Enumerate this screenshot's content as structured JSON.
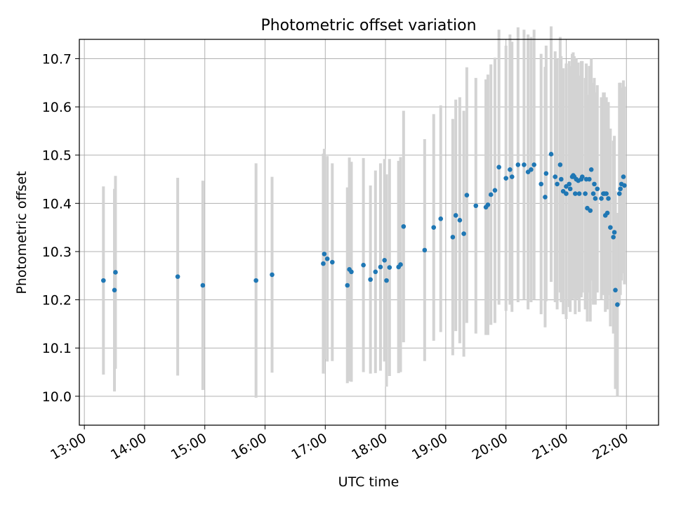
{
  "chart_data": {
    "type": "scatter",
    "title": "Photometric offset variation",
    "xlabel": "UTC time",
    "ylabel": "Photometric offset",
    "x_ticks": [
      "13:00",
      "14:00",
      "15:00",
      "16:00",
      "17:00",
      "18:00",
      "19:00",
      "20:00",
      "21:00",
      "22:00"
    ],
    "y_ticks": [
      "10.0",
      "10.1",
      "10.2",
      "10.3",
      "10.4",
      "10.5",
      "10.6",
      "10.7"
    ],
    "xlim": [
      "12:55",
      "22:32"
    ],
    "ylim": [
      9.94,
      10.74
    ],
    "grid": true,
    "colors": {
      "marker": "#1f77b4",
      "errorbar": "#d3d3d3",
      "grid": "#b0b0b0"
    },
    "series": [
      {
        "x": [
          "13:19",
          "13:30",
          "13:31",
          "14:33",
          "14:58",
          "15:51",
          "16:07",
          "16:58",
          "16:59",
          "17:02",
          "17:07",
          "17:22",
          "17:24",
          "17:26",
          "17:38",
          "17:45",
          "17:50",
          "17:55",
          "17:59",
          "18:01",
          "18:04",
          "18:13",
          "18:15",
          "18:18",
          "18:39",
          "18:48",
          "18:55",
          "19:07",
          "19:10",
          "19:14",
          "19:18",
          "19:21",
          "19:30",
          "19:40",
          "19:42",
          "19:45",
          "19:49",
          "19:53",
          "20:00",
          "20:04",
          "20:06",
          "20:12",
          "20:18",
          "20:22",
          "20:25",
          "20:28",
          "20:35",
          "20:39",
          "20:40",
          "20:45",
          "20:49",
          "20:51",
          "20:54",
          "20:55",
          "20:57",
          "21:00",
          "21:00",
          "21:03",
          "21:04",
          "21:06",
          "21:07",
          "21:08",
          "21:09",
          "21:10",
          "21:12",
          "21:13",
          "21:15",
          "21:16",
          "21:19",
          "21:20",
          "21:21",
          "21:23",
          "21:24",
          "21:25",
          "21:27",
          "21:28",
          "21:29",
          "21:31",
          "21:35",
          "21:37",
          "21:38",
          "21:39",
          "21:40",
          "21:41",
          "21:42",
          "21:44",
          "21:47",
          "21:48",
          "21:49",
          "21:51",
          "21:53",
          "21:54",
          "21:55",
          "21:57",
          "21:58"
        ],
        "y": [
          10.24,
          10.22,
          10.257,
          10.248,
          10.23,
          10.24,
          10.252,
          10.275,
          10.295,
          10.285,
          10.278,
          10.23,
          10.263,
          10.258,
          10.272,
          10.242,
          10.258,
          10.268,
          10.282,
          10.24,
          10.267,
          10.268,
          10.273,
          10.352,
          10.303,
          10.35,
          10.368,
          10.33,
          10.375,
          10.365,
          10.337,
          10.417,
          10.395,
          10.392,
          10.397,
          10.418,
          10.427,
          10.475,
          10.452,
          10.47,
          10.455,
          10.48,
          10.48,
          10.465,
          10.47,
          10.48,
          10.44,
          10.413,
          10.462,
          10.502,
          10.455,
          10.44,
          10.48,
          10.45,
          10.425,
          10.42,
          10.435,
          10.44,
          10.43,
          10.455,
          10.458,
          10.455,
          10.42,
          10.45,
          10.447,
          10.42,
          10.45,
          10.455,
          10.42,
          10.45,
          10.39,
          10.45,
          10.385,
          10.47,
          10.42,
          10.44,
          10.41,
          10.43,
          10.41,
          10.42,
          10.42,
          10.375,
          10.42,
          10.38,
          10.41,
          10.35,
          10.33,
          10.34,
          10.22,
          10.19,
          10.42,
          10.43,
          10.44,
          10.455,
          10.437
        ],
        "yerr": [
          0.195,
          0.21,
          0.2,
          0.205,
          0.217,
          0.243,
          0.203,
          0.228,
          0.218,
          0.213,
          0.205,
          0.203,
          0.232,
          0.228,
          0.222,
          0.195,
          0.21,
          0.215,
          0.21,
          0.22,
          0.225,
          0.22,
          0.223,
          0.24,
          0.23,
          0.235,
          0.235,
          0.245,
          0.24,
          0.255,
          0.255,
          0.265,
          0.265,
          0.265,
          0.27,
          0.27,
          0.275,
          0.285,
          0.275,
          0.28,
          0.28,
          0.285,
          0.28,
          0.285,
          0.275,
          0.28,
          0.27,
          0.27,
          0.265,
          0.265,
          0.26,
          0.26,
          0.265,
          0.255,
          0.255,
          0.26,
          0.255,
          0.255,
          0.255,
          0.255,
          0.255,
          0.25,
          0.25,
          0.25,
          0.245,
          0.245,
          0.245,
          0.24,
          0.24,
          0.24,
          0.235,
          0.235,
          0.23,
          0.23,
          0.23,
          0.22,
          0.22,
          0.215,
          0.21,
          0.21,
          0.21,
          0.2,
          0.2,
          0.2,
          0.2,
          0.205,
          0.2,
          0.2,
          0.205,
          0.19,
          0.23,
          0.22,
          0.2,
          0.2,
          0.205
        ]
      }
    ]
  }
}
